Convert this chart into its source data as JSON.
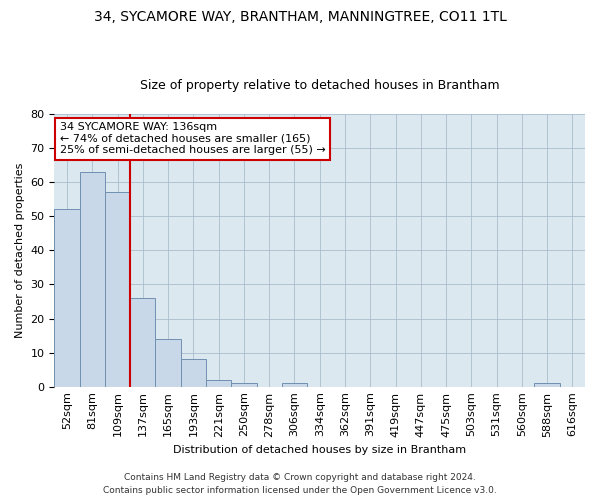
{
  "title1": "34, SYCAMORE WAY, BRANTHAM, MANNINGTREE, CO11 1TL",
  "title2": "Size of property relative to detached houses in Brantham",
  "xlabel": "Distribution of detached houses by size in Brantham",
  "ylabel": "Number of detached properties",
  "categories": [
    "52sqm",
    "81sqm",
    "109sqm",
    "137sqm",
    "165sqm",
    "193sqm",
    "221sqm",
    "250sqm",
    "278sqm",
    "306sqm",
    "334sqm",
    "362sqm",
    "391sqm",
    "419sqm",
    "447sqm",
    "475sqm",
    "503sqm",
    "531sqm",
    "560sqm",
    "588sqm",
    "616sqm"
  ],
  "values": [
    52,
    63,
    57,
    26,
    14,
    8,
    2,
    1,
    0,
    1,
    0,
    0,
    0,
    0,
    0,
    0,
    0,
    0,
    0,
    1,
    0
  ],
  "bar_color": "#c8d8e8",
  "bar_edge_color": "#7090b0",
  "vline_color": "#cc0000",
  "vline_x_index": 2.5,
  "annotation_line1": "34 SYCAMORE WAY: 136sqm",
  "annotation_line2": "← 74% of detached houses are smaller (165)",
  "annotation_line3": "25% of semi-detached houses are larger (55) →",
  "annotation_box_facecolor": "#ffffff",
  "annotation_box_edgecolor": "#cc0000",
  "ylim": [
    0,
    80
  ],
  "yticks": [
    0,
    10,
    20,
    30,
    40,
    50,
    60,
    70,
    80
  ],
  "grid_color": "#aabccc",
  "plot_bg_color": "#dce8f0",
  "figure_bg_color": "#ffffff",
  "footer1": "Contains HM Land Registry data © Crown copyright and database right 2024.",
  "footer2": "Contains public sector information licensed under the Open Government Licence v3.0.",
  "title1_fontsize": 10,
  "title2_fontsize": 9,
  "xlabel_fontsize": 8,
  "ylabel_fontsize": 8,
  "tick_fontsize": 8,
  "annotation_fontsize": 8,
  "footer_fontsize": 6.5
}
